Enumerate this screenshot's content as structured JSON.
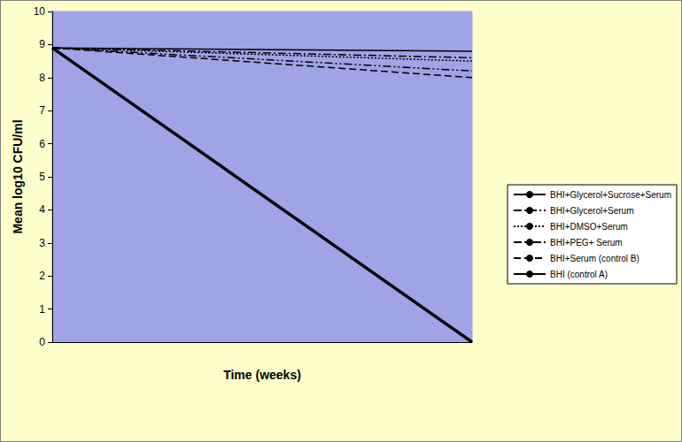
{
  "chart_data": {
    "type": "line",
    "xlabel": "Time (weeks)",
    "ylabel": "Mean log10 CFU/ml",
    "categories": [
      null,
      null
    ],
    "ylim": [
      0,
      10
    ],
    "yticks": [
      0,
      1,
      2,
      3,
      4,
      5,
      6,
      7,
      8,
      9,
      10
    ],
    "grid": false,
    "legend": "right",
    "tick_labels": "y",
    "series": [
      {
        "name": "BHI+Glycerol+Sucrose+Serum",
        "color": "#000000",
        "line_style": "solid",
        "values": [
          8.9,
          8.8
        ]
      },
      {
        "name": "BHI+Glycerol+Serum",
        "color": "#000000",
        "line_style": "dashdot",
        "values": [
          8.9,
          8.6
        ]
      },
      {
        "name": "BHI+DMSO+Serum",
        "color": "#000000",
        "line_style": "dotted",
        "values": [
          8.9,
          8.5
        ]
      },
      {
        "name": "BHI+PEG+ Serum",
        "color": "#000000",
        "line_style": "dashdotdot",
        "values": [
          8.9,
          8.2
        ]
      },
      {
        "name": "BHI+Serum (control B)",
        "color": "#000000",
        "line_style": "dashed",
        "values": [
          8.9,
          8.0
        ]
      },
      {
        "name": "BHI (control A)",
        "color": "#000000",
        "line_style": "bold",
        "values": [
          8.9,
          0
        ]
      }
    ]
  }
}
